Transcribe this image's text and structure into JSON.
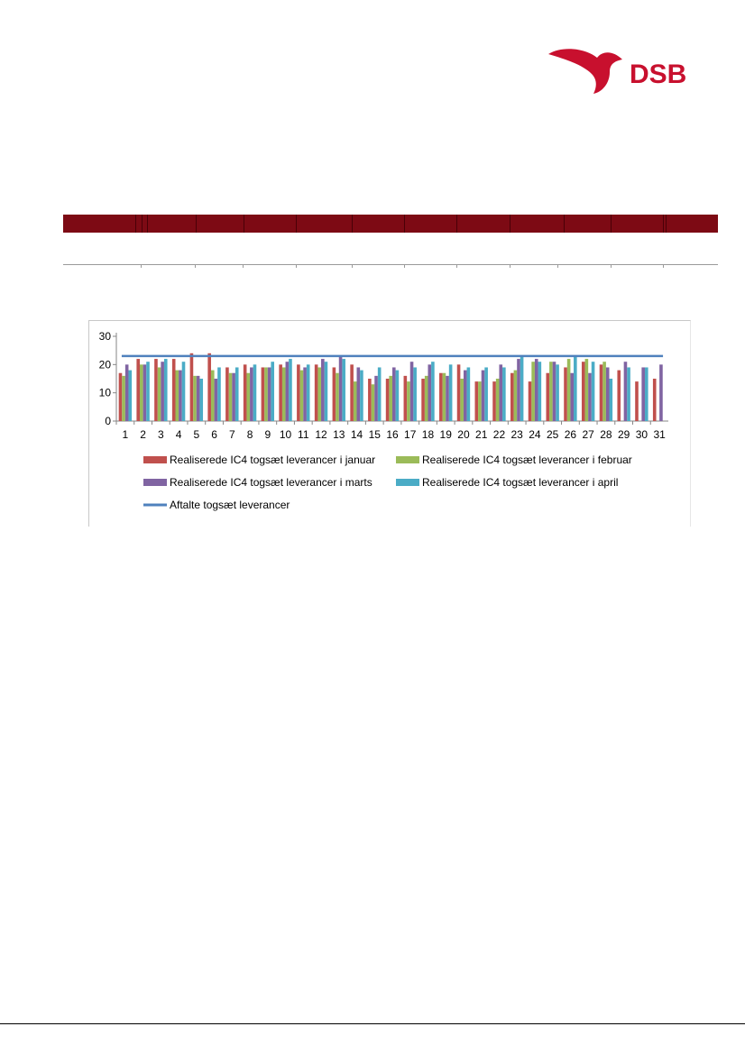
{
  "header": {
    "logo_text": "DSB",
    "brand_color": "#c8102e",
    "band_color": "#7d0a14"
  },
  "chart_data": {
    "type": "bar",
    "categories": [
      "1",
      "2",
      "3",
      "4",
      "5",
      "6",
      "7",
      "8",
      "9",
      "10",
      "11",
      "12",
      "13",
      "14",
      "15",
      "16",
      "17",
      "18",
      "19",
      "20",
      "21",
      "22",
      "23",
      "24",
      "25",
      "26",
      "27",
      "28",
      "29",
      "30",
      "31"
    ],
    "ylim": [
      0,
      30
    ],
    "yticks": [
      0,
      10,
      20,
      30
    ],
    "grid": false,
    "legend": "bottom",
    "series": [
      {
        "name": "Realiserede IC4 togsæt leverancer i januar",
        "color": "#c0504d",
        "values": [
          17,
          22,
          22,
          22,
          24,
          24,
          19,
          20,
          19,
          20,
          20,
          20,
          19,
          20,
          15,
          15,
          16,
          15,
          17,
          20,
          14,
          14,
          17,
          14,
          17,
          19,
          21,
          20,
          18,
          14,
          15
        ]
      },
      {
        "name": "Realiserede IC4 togsæt leverancer i februar",
        "color": "#9bbb59",
        "values": [
          16,
          20,
          19,
          18,
          16,
          18,
          17,
          17,
          19,
          19,
          18,
          19,
          17,
          14,
          13,
          16,
          14,
          16,
          17,
          15,
          14,
          15,
          18,
          21,
          21,
          22,
          22,
          21,
          null,
          null,
          null
        ]
      },
      {
        "name": "Realiserede IC4 togsæt leverancer i marts",
        "color": "#8064a2",
        "values": [
          20,
          20,
          21,
          18,
          16,
          15,
          17,
          19,
          19,
          21,
          19,
          22,
          23,
          19,
          16,
          19,
          21,
          20,
          16,
          18,
          18,
          20,
          22,
          22,
          21,
          17,
          17,
          19,
          21,
          19,
          20
        ]
      },
      {
        "name": "Realiserede IC4 togsæt leverancer i april",
        "color": "#4bacc6",
        "values": [
          18,
          21,
          22,
          21,
          15,
          19,
          19,
          20,
          21,
          22,
          20,
          21,
          22,
          18,
          19,
          18,
          19,
          21,
          20,
          19,
          19,
          19,
          23,
          21,
          20,
          23,
          21,
          15,
          19,
          19,
          null
        ]
      }
    ],
    "reference_line": {
      "name": "Aftalte togsæt leverancer",
      "value": 23,
      "color": "#4f81bd"
    }
  }
}
